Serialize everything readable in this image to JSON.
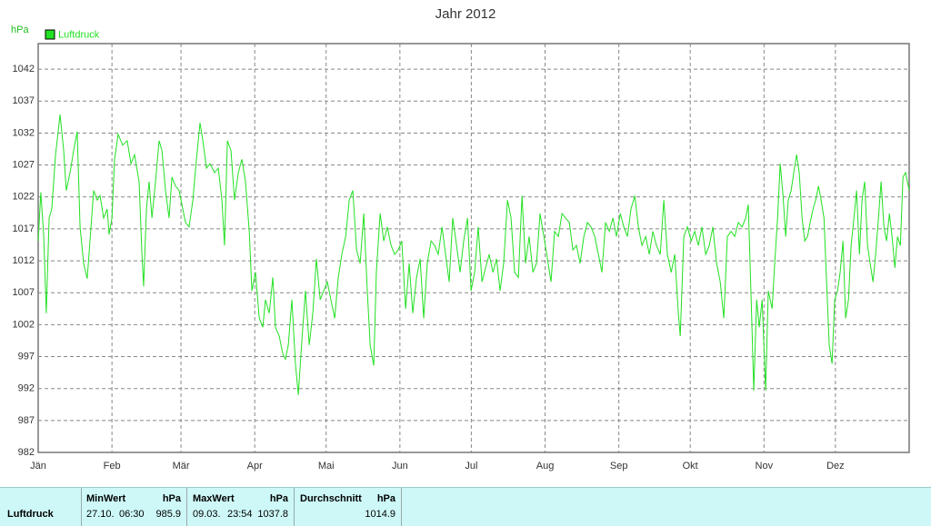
{
  "chart_data": {
    "type": "line",
    "title": "Jahr 2012",
    "y_label": "hPa",
    "x": [
      0,
      1.1,
      2.3,
      3.4,
      4.6,
      5.7,
      7.3,
      9.2,
      10.7,
      11.8,
      13.4,
      14.9,
      16.4,
      17.6,
      19.1,
      20.6,
      22.2,
      23.3,
      24.8,
      26.0,
      27.5,
      29.0,
      29.8,
      31.0,
      32.1,
      33.6,
      35.5,
      37.4,
      39.0,
      40.5,
      42.4,
      43.6,
      44.3,
      45.5,
      46.6,
      47.8,
      49.3,
      50.8,
      52.0,
      53.5,
      55.0,
      56.2,
      57.7,
      59.2,
      60.4,
      61.9,
      63.4,
      65.0,
      66.5,
      68.0,
      69.2,
      70.7,
      72.2,
      74.1,
      75.7,
      77.2,
      78.3,
      79.5,
      81.0,
      82.5,
      84.1,
      85.6,
      87.1,
      88.7,
      89.8,
      91.3,
      92.9,
      94.4,
      95.5,
      97.1,
      98.6,
      99.7,
      101.3,
      102.8,
      103.9,
      105.1,
      106.6,
      108.1,
      109.3,
      110.8,
      112.3,
      113.9,
      115.4,
      116.9,
      118.5,
      120.0,
      121.5,
      123.0,
      124.6,
      126.1,
      127.6,
      129.2,
      130.7,
      132.2,
      133.8,
      135.3,
      136.8,
      138.3,
      139.5,
      141.0,
      142.1,
      143.7,
      145.2,
      146.7,
      148.3,
      149.8,
      151.3,
      152.8,
      154.4,
      155.9,
      157.4,
      159.0,
      160.5,
      162.0,
      163.5,
      165.1,
      166.6,
      168.1,
      169.7,
      171.2,
      172.7,
      174.2,
      175.8,
      177.3,
      178.8,
      180.4,
      181.9,
      183.4,
      184.9,
      186.5,
      188.0,
      189.5,
      191.1,
      192.6,
      194.1,
      195.6,
      197.2,
      198.7,
      200.2,
      201.8,
      203.3,
      204.8,
      206.3,
      207.9,
      209.4,
      210.9,
      212.5,
      214.0,
      215.5,
      217.0,
      218.6,
      220.1,
      221.6,
      223.2,
      224.7,
      226.2,
      227.7,
      229.3,
      230.8,
      232.3,
      233.9,
      235.4,
      236.9,
      238.4,
      240.0,
      241.5,
      243.0,
      244.6,
      246.1,
      247.6,
      249.1,
      250.7,
      252.2,
      253.7,
      255.3,
      256.8,
      258.3,
      259.8,
      261.4,
      262.9,
      264.4,
      266.0,
      267.5,
      269.0,
      269.8,
      271.3,
      272.8,
      274.4,
      275.9,
      277.4,
      278.9,
      280.5,
      282.0,
      283.5,
      285.1,
      286.6,
      288.1,
      289.6,
      291.2,
      292.7,
      294.2,
      295.8,
      297.3,
      298.4,
      299.6,
      300.7,
      301.9,
      303.0,
      304.2,
      305.7,
      306.8,
      308.4,
      309.5,
      310.7,
      311.8,
      313.0,
      314.1,
      315.2,
      316.4,
      317.5,
      318.7,
      319.8,
      321.0,
      322.1,
      323.3,
      324.4,
      325.6,
      326.7,
      327.9,
      329.0,
      330.2,
      331.3,
      332.4,
      333.6,
      334.7,
      335.9,
      337.0,
      338.2,
      339.3,
      340.5,
      341.6,
      342.8,
      343.9,
      345.1,
      346.2,
      347.3,
      348.5,
      349.6,
      350.8,
      351.9,
      353.1,
      354.2,
      355.4,
      356.5,
      357.7,
      358.8,
      360.0,
      361.1,
      362.3,
      363.4,
      364.5,
      366
    ],
    "series": [
      {
        "name": "Luftdruck",
        "color": "#22e022",
        "values": [
          1015.1,
          1022.7,
          1016.1,
          1003.8,
          1018.7,
          1020.1,
          1028.6,
          1034.9,
          1029.3,
          1023.0,
          1025.8,
          1029.3,
          1032.2,
          1017.3,
          1011.6,
          1009.2,
          1017.3,
          1023.0,
          1021.5,
          1022.2,
          1018.7,
          1020.1,
          1016.1,
          1018.7,
          1027.9,
          1031.8,
          1030.1,
          1030.8,
          1027.2,
          1028.6,
          1024.4,
          1013.0,
          1008.0,
          1020.1,
          1024.4,
          1018.7,
          1024.4,
          1030.8,
          1029.3,
          1023.0,
          1018.7,
          1025.1,
          1023.7,
          1023.0,
          1020.8,
          1018.0,
          1017.3,
          1021.5,
          1027.9,
          1033.6,
          1030.8,
          1026.5,
          1027.2,
          1025.8,
          1026.5,
          1021.5,
          1014.4,
          1030.8,
          1029.3,
          1021.5,
          1025.8,
          1027.9,
          1024.4,
          1016.6,
          1007.3,
          1010.2,
          1003.0,
          1001.6,
          1005.9,
          1003.8,
          1009.4,
          1001.6,
          1000.2,
          997.4,
          996.6,
          998.8,
          1005.9,
          995.9,
          991.0,
          999.5,
          1007.3,
          998.8,
          1003.8,
          1012.3,
          1005.9,
          1007.3,
          1008.7,
          1005.9,
          1003.0,
          1009.4,
          1013.0,
          1015.8,
          1021.5,
          1023.0,
          1013.7,
          1011.6,
          1019.4,
          1007.3,
          998.8,
          995.6,
          1010.2,
          1019.4,
          1015.1,
          1017.3,
          1014.4,
          1013.0,
          1013.7,
          1015.1,
          1004.5,
          1011.6,
          1003.8,
          1009.4,
          1012.3,
          1003.0,
          1011.6,
          1015.1,
          1014.4,
          1013.0,
          1017.3,
          1013.0,
          1008.7,
          1018.7,
          1014.4,
          1010.2,
          1015.1,
          1018.7,
          1007.3,
          1010.2,
          1017.3,
          1008.7,
          1010.9,
          1013.0,
          1010.2,
          1012.3,
          1007.3,
          1011.6,
          1021.5,
          1018.7,
          1010.2,
          1009.4,
          1022.2,
          1011.6,
          1015.8,
          1010.2,
          1011.6,
          1019.4,
          1015.8,
          1012.3,
          1008.7,
          1016.6,
          1015.8,
          1019.4,
          1018.7,
          1018.0,
          1013.7,
          1014.4,
          1011.6,
          1015.8,
          1018.0,
          1017.3,
          1015.8,
          1013.0,
          1010.2,
          1018.0,
          1016.6,
          1018.7,
          1015.8,
          1019.4,
          1017.3,
          1015.8,
          1020.1,
          1022.2,
          1017.3,
          1014.4,
          1015.8,
          1013.0,
          1016.6,
          1014.4,
          1013.0,
          1021.5,
          1013.0,
          1010.2,
          1013.0,
          1003.8,
          1000.2,
          1015.8,
          1017.3,
          1015.1,
          1016.6,
          1014.4,
          1017.3,
          1013.0,
          1014.4,
          1017.3,
          1011.6,
          1008.7,
          1003.0,
          1015.8,
          1016.6,
          1015.8,
          1018.0,
          1017.3,
          1018.7,
          1020.8,
          1005.9,
          991.7,
          1005.9,
          1001.6,
          1005.9,
          991.7,
          1007.3,
          1004.5,
          1011.6,
          1018.7,
          1027.2,
          1022.2,
          1015.8,
          1021.5,
          1023.0,
          1025.8,
          1028.6,
          1025.8,
          1018.7,
          1015.1,
          1015.8,
          1018.0,
          1020.1,
          1021.5,
          1023.7,
          1021.5,
          1018.7,
          1008.7,
          998.8,
          995.9,
          1005.9,
          1007.3,
          1010.2,
          1015.1,
          1003.0,
          1005.9,
          1014.4,
          1018.7,
          1023.0,
          1013.0,
          1021.5,
          1024.4,
          1014.4,
          1011.6,
          1008.7,
          1013.0,
          1018.7,
          1024.4,
          1017.3,
          1015.1,
          1019.4,
          1015.8,
          1010.9,
          1015.8,
          1014.4,
          1025.1,
          1025.8,
          1023.0
        ]
      }
    ],
    "xlim": [
      0,
      366
    ],
    "xticks": [
      {
        "value": 0,
        "label": "Jän"
      },
      {
        "value": 31,
        "label": "Feb"
      },
      {
        "value": 60,
        "label": "Mär"
      },
      {
        "value": 91,
        "label": "Apr"
      },
      {
        "value": 121,
        "label": "Mai"
      },
      {
        "value": 152,
        "label": "Jun"
      },
      {
        "value": 182,
        "label": "Jul"
      },
      {
        "value": 213,
        "label": "Aug"
      },
      {
        "value": 244,
        "label": "Sep"
      },
      {
        "value": 274,
        "label": "Okt"
      },
      {
        "value": 305,
        "label": "Nov"
      },
      {
        "value": 335,
        "label": "Dez"
      }
    ],
    "ylim": [
      982,
      1046
    ],
    "yticks": [
      982,
      987,
      992,
      997,
      1002,
      1007,
      1012,
      1017,
      1022,
      1027,
      1032,
      1037,
      1042
    ],
    "grid": true,
    "legend": "top-left"
  },
  "table": {
    "header": [
      "MinWert",
      "hPa",
      "MaxWert",
      "hPa",
      "Durchschnitt",
      "hPa"
    ],
    "rows": [
      [
        "Luftdruck",
        "27.10.",
        "06:30",
        985.9,
        "09.03.",
        "23:54",
        1037.8,
        1014.9
      ]
    ]
  }
}
